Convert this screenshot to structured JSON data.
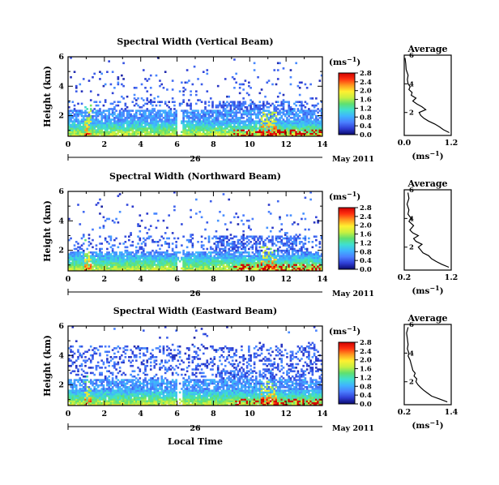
{
  "date_label": "May 2011",
  "day_label": "26",
  "time_label": "Local Time",
  "average_title": "Average",
  "colorbar_unit": "(ms",
  "colorbar_unit_exp": "−1",
  "colorbar_unit_close": ")",
  "avg_unit": "(ms",
  "avg_unit_exp": "−1",
  "avg_unit_close": ")",
  "colormap": [
    "#0a0a6e",
    "#2f3fd6",
    "#4a7fff",
    "#3fb4ff",
    "#3fe0d0",
    "#5fe070",
    "#c8f040",
    "#fff030",
    "#ff9a20",
    "#ff3010",
    "#d00000"
  ],
  "chart_data": [
    {
      "type": "heatmap",
      "title": "Spectral Width (Vertical Beam)",
      "ylabel": "Height (km)",
      "xticks": [
        "0",
        "2",
        "4",
        "6",
        "8",
        "10",
        "12",
        "14"
      ],
      "yticks": [
        "2",
        "4",
        "6"
      ],
      "xlim": [
        0,
        14
      ],
      "ylim": [
        0.6,
        6
      ],
      "colorbar_ticks": [
        "0.0",
        "0.4",
        "0.8",
        "1.2",
        "1.6",
        "2.0",
        "2.4",
        "2.8"
      ],
      "colorbar_range": [
        0,
        2.8
      ],
      "avg_xticks": [
        "0.0",
        "1.2"
      ],
      "avg_xlim": [
        0.0,
        1.2
      ],
      "avg_profile": [
        {
          "h": 0.6,
          "v": 1.15
        },
        {
          "h": 0.8,
          "v": 1.0
        },
        {
          "h": 1.0,
          "v": 0.9
        },
        {
          "h": 1.2,
          "v": 0.78
        },
        {
          "h": 1.4,
          "v": 0.62
        },
        {
          "h": 1.6,
          "v": 0.5
        },
        {
          "h": 1.8,
          "v": 0.42
        },
        {
          "h": 2.0,
          "v": 0.38
        },
        {
          "h": 2.2,
          "v": 0.55
        },
        {
          "h": 2.4,
          "v": 0.45
        },
        {
          "h": 2.6,
          "v": 0.32
        },
        {
          "h": 2.8,
          "v": 0.22
        },
        {
          "h": 3.0,
          "v": 0.3
        },
        {
          "h": 3.2,
          "v": 0.18
        },
        {
          "h": 3.4,
          "v": 0.2
        },
        {
          "h": 3.6,
          "v": 0.12
        },
        {
          "h": 3.8,
          "v": 0.15
        },
        {
          "h": 4.0,
          "v": 0.1
        },
        {
          "h": 4.3,
          "v": 0.08
        },
        {
          "h": 4.6,
          "v": 0.1
        },
        {
          "h": 5.0,
          "v": 0.05
        },
        {
          "h": 5.4,
          "v": 0.04
        },
        {
          "h": 5.8,
          "v": 0.02
        }
      ]
    },
    {
      "type": "heatmap",
      "title": "Spectral Width (Northward Beam)",
      "ylabel": "Height (km)",
      "xticks": [
        "0",
        "2",
        "4",
        "6",
        "8",
        "10",
        "12",
        "14"
      ],
      "yticks": [
        "2",
        "4",
        "6"
      ],
      "xlim": [
        0,
        14
      ],
      "ylim": [
        0.6,
        6
      ],
      "colorbar_ticks": [
        "0.0",
        "0.4",
        "0.8",
        "1.2",
        "1.6",
        "2.0",
        "2.4",
        "2.8"
      ],
      "colorbar_range": [
        0,
        2.8
      ],
      "avg_xticks": [
        "0.2",
        "1.2"
      ],
      "avg_xlim": [
        0.2,
        1.2
      ],
      "avg_profile": [
        {
          "h": 0.6,
          "v": 1.15
        },
        {
          "h": 0.8,
          "v": 1.0
        },
        {
          "h": 1.0,
          "v": 0.88
        },
        {
          "h": 1.2,
          "v": 0.78
        },
        {
          "h": 1.4,
          "v": 0.72
        },
        {
          "h": 1.6,
          "v": 0.6
        },
        {
          "h": 1.8,
          "v": 0.55
        },
        {
          "h": 2.0,
          "v": 0.5
        },
        {
          "h": 2.2,
          "v": 0.58
        },
        {
          "h": 2.4,
          "v": 0.45
        },
        {
          "h": 2.6,
          "v": 0.4
        },
        {
          "h": 2.8,
          "v": 0.5
        },
        {
          "h": 3.0,
          "v": 0.38
        },
        {
          "h": 3.2,
          "v": 0.32
        },
        {
          "h": 3.5,
          "v": 0.4
        },
        {
          "h": 3.8,
          "v": 0.3
        },
        {
          "h": 4.0,
          "v": 0.35
        },
        {
          "h": 4.3,
          "v": 0.28
        },
        {
          "h": 4.6,
          "v": 0.3
        },
        {
          "h": 5.0,
          "v": 0.26
        },
        {
          "h": 5.4,
          "v": 0.3
        },
        {
          "h": 5.8,
          "v": 0.28
        }
      ]
    },
    {
      "type": "heatmap",
      "title": "Spectral Width (Eastward Beam)",
      "ylabel": "Height (km)",
      "xticks": [
        "0",
        "2",
        "4",
        "6",
        "8",
        "10",
        "12",
        "14"
      ],
      "yticks": [
        "2",
        "4",
        "6"
      ],
      "xlim": [
        0,
        14
      ],
      "ylim": [
        0.6,
        6
      ],
      "colorbar_ticks": [
        "0.0",
        "0.4",
        "0.8",
        "1.2",
        "1.6",
        "2.0",
        "2.4",
        "2.8"
      ],
      "colorbar_range": [
        0,
        2.8
      ],
      "avg_xticks": [
        "0.2",
        "1.4"
      ],
      "avg_xlim": [
        0.2,
        1.4
      ],
      "avg_profile": [
        {
          "h": 0.6,
          "v": 1.3
        },
        {
          "h": 0.8,
          "v": 1.1
        },
        {
          "h": 1.0,
          "v": 0.9
        },
        {
          "h": 1.2,
          "v": 0.8
        },
        {
          "h": 1.4,
          "v": 0.7
        },
        {
          "h": 1.6,
          "v": 0.62
        },
        {
          "h": 1.8,
          "v": 0.55
        },
        {
          "h": 2.0,
          "v": 0.5
        },
        {
          "h": 2.2,
          "v": 0.52
        },
        {
          "h": 2.4,
          "v": 0.45
        },
        {
          "h": 2.6,
          "v": 0.48
        },
        {
          "h": 2.8,
          "v": 0.42
        },
        {
          "h": 3.0,
          "v": 0.4
        },
        {
          "h": 3.2,
          "v": 0.38
        },
        {
          "h": 3.5,
          "v": 0.35
        },
        {
          "h": 3.8,
          "v": 0.3
        },
        {
          "h": 4.0,
          "v": 0.32
        },
        {
          "h": 4.3,
          "v": 0.28
        },
        {
          "h": 4.6,
          "v": 0.3
        },
        {
          "h": 5.0,
          "v": 0.28
        },
        {
          "h": 5.4,
          "v": 0.26
        },
        {
          "h": 5.8,
          "v": 0.3
        }
      ]
    }
  ]
}
